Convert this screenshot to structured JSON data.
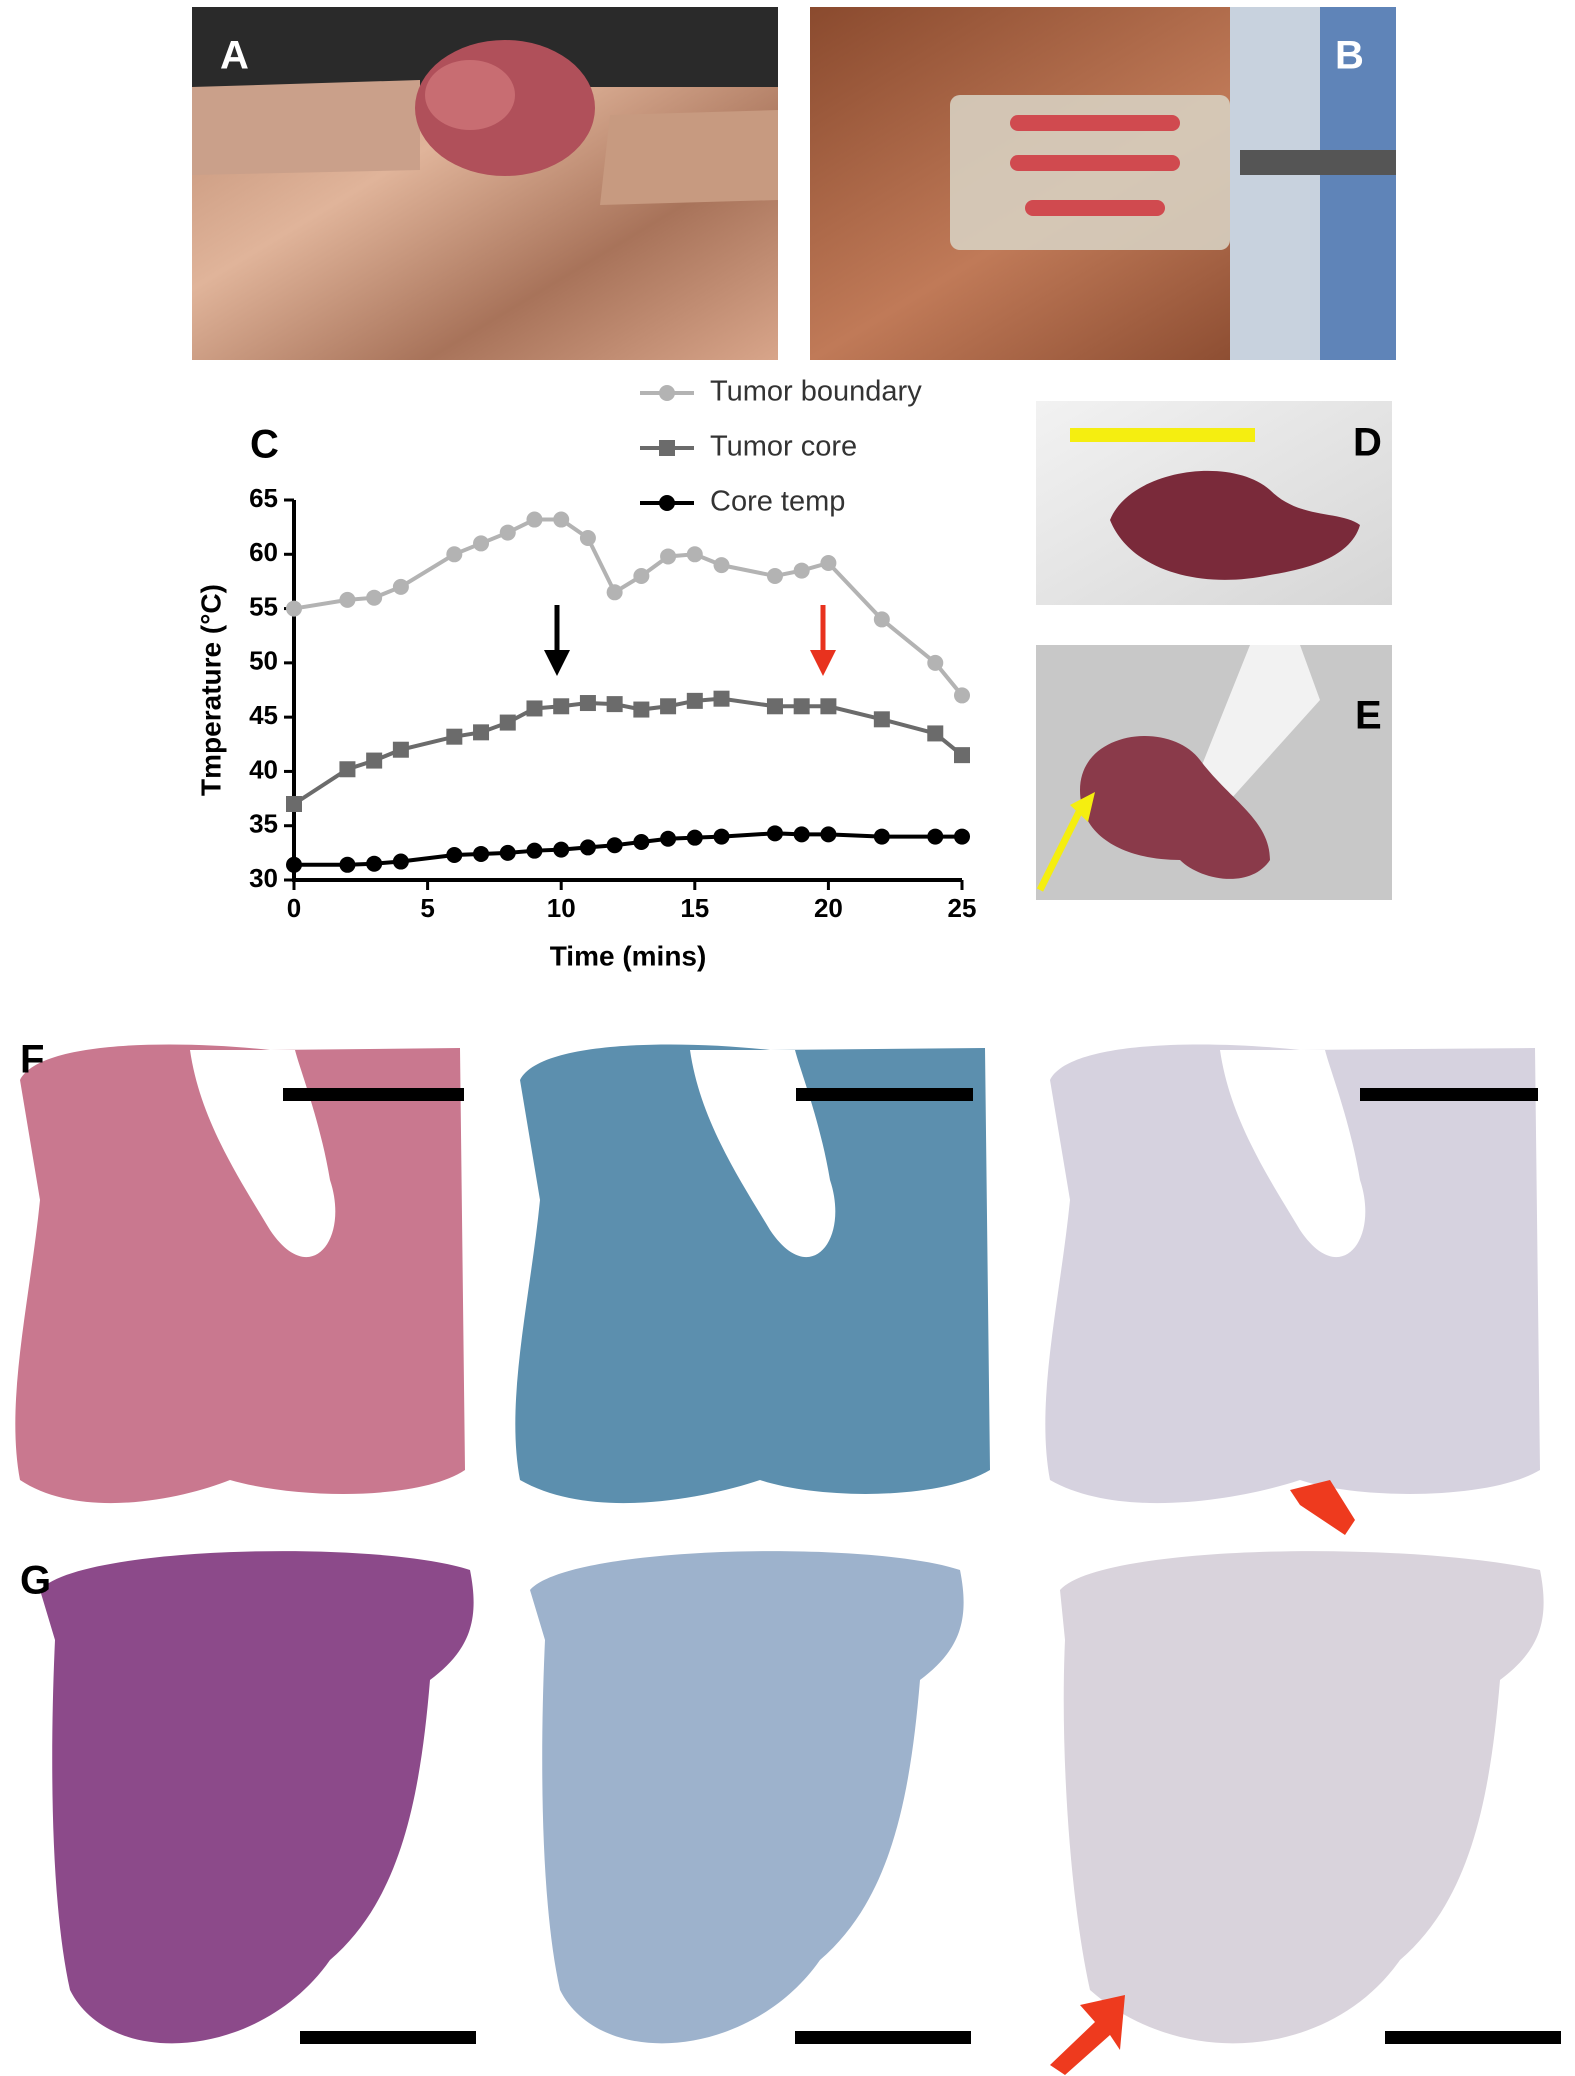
{
  "panel_labels": {
    "A": "A",
    "B": "B",
    "D": "D",
    "E": "E",
    "F": "F",
    "G": "G"
  },
  "chart_data": {
    "type": "line",
    "panel_label": "C",
    "x_label": "Time (mins)",
    "y_label": "Tmperature (°C)",
    "x": [
      0,
      2,
      3,
      4,
      6,
      7,
      8,
      9,
      10,
      11,
      12,
      13,
      14,
      15,
      16,
      18,
      19,
      20,
      22,
      24,
      25
    ],
    "series": [
      {
        "name": "Tumor boundary",
        "color": "#b3b3b3",
        "marker": "circle",
        "values": [
          55,
          55.8,
          56,
          57,
          60,
          61,
          62,
          63.2,
          63.2,
          61.5,
          56.5,
          58,
          59.8,
          60,
          59,
          58,
          58.5,
          59.2,
          54,
          50,
          47
        ]
      },
      {
        "name": "Tumor core",
        "color": "#6b6b6b",
        "marker": "square",
        "values": [
          37,
          40.2,
          41,
          42,
          43.2,
          43.6,
          44.5,
          45.8,
          46,
          46.3,
          46.2,
          45.7,
          46,
          46.5,
          46.7,
          46,
          46,
          46,
          44.8,
          43.5,
          41.5
        ]
      },
      {
        "name": "Core temp",
        "color": "#000000",
        "marker": "circle",
        "values": [
          31.4,
          31.4,
          31.5,
          31.7,
          32.3,
          32.4,
          32.5,
          32.7,
          32.8,
          33,
          33.2,
          33.5,
          33.8,
          33.9,
          34,
          34.3,
          34.2,
          34.2,
          34,
          34,
          34
        ]
      }
    ],
    "xlim": [
      0,
      25
    ],
    "xticks": [
      0,
      5,
      10,
      15,
      20,
      25
    ],
    "ylim": [
      30,
      65
    ],
    "yticks": [
      30,
      35,
      40,
      45,
      50,
      55,
      60,
      65
    ],
    "legend": "top"
  }
}
